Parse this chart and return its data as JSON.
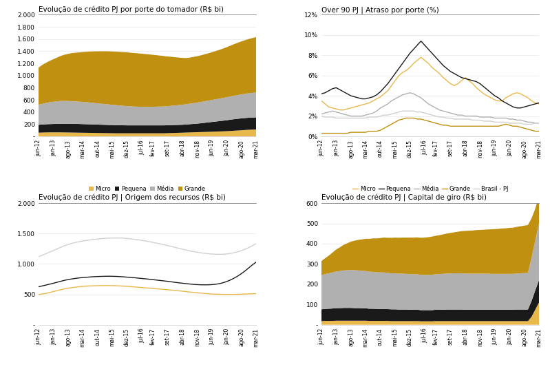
{
  "title1": "Evolução de crédito PJ por porte do tomador (R$ bi)",
  "title2": "Over 90 PJ | Atraso por porte (%)",
  "title3": "Evolução de crédito PJ | Origem dos recursos (R$ bi)",
  "title4": "Evolução de crédito PJ | Capital de giro (R$ bi)",
  "colors": {
    "micro": "#E8B84B",
    "pequena": "#1A1A1A",
    "media": "#B0B0B0",
    "grande": "#C09010",
    "brasil_pj": "#D0D0D0",
    "com_dest": "#E8B84B",
    "sem_dest": "#1A1A1A"
  },
  "xtick_labels": [
    "jun-12",
    "jan-13",
    "ago-13",
    "mar-14",
    "out-14",
    "mai-15",
    "dez-15",
    "jul-16",
    "fev-17",
    "set-17",
    "abr-18",
    "nov-18",
    "jun-19",
    "jan-20",
    "ago-20",
    "mar-21"
  ],
  "c1_micro": [
    60,
    62,
    64,
    65,
    65,
    65,
    65,
    64,
    63,
    62,
    61,
    60,
    59,
    58,
    57,
    56,
    55,
    54,
    53,
    52,
    51,
    50,
    50,
    50,
    50,
    50,
    50,
    50,
    50,
    50,
    50,
    50,
    50,
    50,
    50,
    52,
    54,
    56,
    58,
    60,
    62,
    64,
    66,
    68,
    70,
    72,
    74,
    76,
    78,
    80,
    82,
    85,
    88,
    92,
    96,
    100,
    104,
    108,
    110,
    112
  ],
  "c1_pequena": [
    130,
    132,
    134,
    136,
    138,
    140,
    142,
    143,
    144,
    145,
    144,
    143,
    142,
    141,
    140,
    139,
    138,
    137,
    136,
    135,
    134,
    133,
    132,
    131,
    130,
    130,
    130,
    130,
    130,
    130,
    130,
    130,
    130,
    130,
    130,
    130,
    130,
    130,
    130,
    130,
    132,
    135,
    138,
    141,
    145,
    150,
    155,
    160,
    165,
    170,
    175,
    180,
    185,
    190,
    193,
    195,
    197,
    198,
    199,
    200
  ],
  "c1_media": [
    330,
    340,
    350,
    360,
    365,
    370,
    375,
    375,
    374,
    372,
    370,
    368,
    365,
    362,
    358,
    354,
    350,
    346,
    342,
    338,
    334,
    330,
    326,
    322,
    318,
    314,
    310,
    308,
    306,
    305,
    305,
    306,
    308,
    310,
    312,
    315,
    318,
    322,
    326,
    330,
    334,
    338,
    342,
    346,
    350,
    354,
    358,
    362,
    366,
    370,
    374,
    378,
    382,
    386,
    390,
    394,
    398,
    402,
    406,
    410
  ],
  "c1_grande": [
    610,
    640,
    660,
    680,
    700,
    720,
    740,
    760,
    775,
    790,
    800,
    810,
    820,
    830,
    840,
    848,
    855,
    862,
    868,
    873,
    877,
    880,
    882,
    883,
    883,
    882,
    880,
    877,
    873,
    868,
    862,
    855,
    847,
    838,
    828,
    817,
    806,
    794,
    782,
    770,
    760,
    758,
    760,
    763,
    767,
    772,
    778,
    785,
    793,
    802,
    812,
    823,
    835,
    848,
    860,
    872,
    883,
    893,
    902,
    910
  ],
  "c2_micro": [
    3.5,
    3.2,
    2.9,
    2.8,
    2.7,
    2.6,
    2.6,
    2.7,
    2.8,
    2.9,
    3.0,
    3.1,
    3.2,
    3.3,
    3.5,
    3.7,
    3.9,
    4.2,
    4.5,
    5.0,
    5.5,
    6.0,
    6.3,
    6.5,
    6.8,
    7.2,
    7.5,
    7.8,
    7.5,
    7.2,
    6.8,
    6.5,
    6.2,
    5.8,
    5.5,
    5.2,
    5.0,
    5.2,
    5.5,
    5.8,
    5.5,
    5.2,
    4.8,
    4.5,
    4.2,
    4.0,
    3.8,
    3.6,
    3.5,
    3.5,
    3.8,
    4.0,
    4.2,
    4.3,
    4.2,
    4.0,
    3.8,
    3.5,
    3.3,
    3.2
  ],
  "c2_pequena": [
    4.2,
    4.3,
    4.5,
    4.7,
    4.8,
    4.6,
    4.4,
    4.2,
    4.0,
    3.9,
    3.8,
    3.7,
    3.7,
    3.8,
    3.9,
    4.1,
    4.4,
    4.8,
    5.2,
    5.7,
    6.2,
    6.7,
    7.2,
    7.7,
    8.2,
    8.6,
    9.0,
    9.4,
    9.0,
    8.6,
    8.2,
    7.8,
    7.4,
    7.0,
    6.7,
    6.4,
    6.2,
    6.0,
    5.8,
    5.7,
    5.6,
    5.5,
    5.4,
    5.2,
    4.9,
    4.6,
    4.3,
    4.0,
    3.8,
    3.5,
    3.3,
    3.1,
    2.9,
    2.8,
    2.8,
    2.9,
    3.0,
    3.1,
    3.2,
    3.3
  ],
  "c2_media": [
    2.2,
    2.3,
    2.4,
    2.5,
    2.4,
    2.3,
    2.2,
    2.1,
    2.0,
    2.0,
    2.0,
    2.0,
    2.1,
    2.2,
    2.3,
    2.5,
    2.8,
    3.0,
    3.2,
    3.5,
    3.7,
    3.9,
    4.1,
    4.2,
    4.3,
    4.2,
    4.0,
    3.8,
    3.5,
    3.2,
    3.0,
    2.8,
    2.6,
    2.5,
    2.4,
    2.3,
    2.2,
    2.1,
    2.1,
    2.0,
    2.0,
    2.0,
    2.0,
    1.9,
    1.9,
    1.9,
    1.9,
    1.8,
    1.8,
    1.8,
    1.8,
    1.7,
    1.7,
    1.6,
    1.6,
    1.5,
    1.4,
    1.4,
    1.3,
    1.3
  ],
  "c2_grande": [
    0.3,
    0.3,
    0.3,
    0.3,
    0.3,
    0.3,
    0.3,
    0.3,
    0.4,
    0.4,
    0.4,
    0.4,
    0.4,
    0.5,
    0.5,
    0.5,
    0.6,
    0.8,
    1.0,
    1.2,
    1.4,
    1.6,
    1.7,
    1.8,
    1.8,
    1.8,
    1.7,
    1.7,
    1.6,
    1.5,
    1.4,
    1.3,
    1.2,
    1.1,
    1.1,
    1.0,
    1.0,
    1.0,
    1.0,
    1.0,
    1.0,
    1.0,
    1.0,
    1.0,
    1.0,
    1.0,
    1.0,
    1.0,
    1.0,
    1.1,
    1.2,
    1.1,
    1.0,
    1.0,
    0.9,
    0.8,
    0.7,
    0.6,
    0.5,
    0.5
  ],
  "c2_brasil": [
    2.0,
    1.9,
    1.9,
    1.9,
    1.8,
    1.8,
    1.8,
    1.8,
    1.8,
    1.8,
    1.8,
    1.8,
    1.8,
    1.9,
    1.9,
    1.9,
    2.0,
    2.1,
    2.1,
    2.2,
    2.3,
    2.4,
    2.5,
    2.5,
    2.5,
    2.5,
    2.4,
    2.4,
    2.3,
    2.2,
    2.1,
    2.0,
    1.9,
    1.9,
    1.8,
    1.8,
    1.7,
    1.7,
    1.7,
    1.7,
    1.7,
    1.6,
    1.6,
    1.6,
    1.5,
    1.5,
    1.5,
    1.4,
    1.4,
    1.4,
    1.4,
    1.3,
    1.3,
    1.3,
    1.3,
    1.2,
    1.2,
    1.2,
    1.3,
    1.3
  ],
  "c3_com": [
    495,
    505,
    515,
    530,
    545,
    560,
    575,
    590,
    600,
    610,
    618,
    625,
    630,
    635,
    638,
    640,
    642,
    643,
    644,
    644,
    643,
    641,
    638,
    635,
    631,
    627,
    622,
    617,
    612,
    607,
    602,
    597,
    592,
    587,
    582,
    576,
    570,
    564,
    558,
    552,
    545,
    538,
    532,
    526,
    520,
    515,
    510,
    505,
    502,
    500,
    499,
    498,
    498,
    499,
    500,
    502,
    505,
    508,
    510,
    512
  ],
  "c3_sem": [
    625,
    638,
    652,
    667,
    682,
    698,
    714,
    730,
    742,
    753,
    762,
    770,
    776,
    781,
    786,
    790,
    793,
    795,
    797,
    798,
    797,
    795,
    792,
    788,
    783,
    778,
    773,
    767,
    761,
    755,
    749,
    742,
    735,
    728,
    721,
    714,
    706,
    698,
    690,
    683,
    676,
    670,
    664,
    660,
    657,
    656,
    657,
    660,
    666,
    675,
    690,
    710,
    735,
    765,
    800,
    840,
    885,
    935,
    985,
    1030
  ],
  "c3_brasil": [
    1120,
    1143,
    1168,
    1194,
    1220,
    1247,
    1273,
    1298,
    1320,
    1338,
    1353,
    1366,
    1377,
    1386,
    1395,
    1403,
    1410,
    1416,
    1421,
    1425,
    1427,
    1428,
    1427,
    1424,
    1419,
    1413,
    1406,
    1397,
    1388,
    1378,
    1367,
    1355,
    1343,
    1330,
    1316,
    1302,
    1288,
    1273,
    1258,
    1243,
    1229,
    1216,
    1204,
    1193,
    1183,
    1175,
    1168,
    1163,
    1160,
    1159,
    1160,
    1165,
    1173,
    1185,
    1200,
    1218,
    1242,
    1270,
    1300,
    1335
  ],
  "c4_micro": [
    18,
    19,
    19,
    19,
    20,
    20,
    20,
    20,
    20,
    20,
    20,
    20,
    20,
    19,
    19,
    19,
    19,
    19,
    19,
    18,
    18,
    18,
    18,
    18,
    18,
    18,
    18,
    17,
    17,
    17,
    17,
    18,
    18,
    18,
    18,
    18,
    18,
    18,
    18,
    18,
    18,
    18,
    18,
    18,
    18,
    18,
    18,
    18,
    18,
    18,
    18,
    18,
    18,
    18,
    18,
    18,
    18,
    40,
    75,
    110
  ],
  "c4_pequena": [
    58,
    59,
    60,
    61,
    62,
    62,
    63,
    63,
    63,
    62,
    62,
    61,
    61,
    60,
    60,
    59,
    59,
    59,
    58,
    58,
    58,
    57,
    57,
    57,
    56,
    56,
    56,
    55,
    55,
    55,
    55,
    56,
    56,
    56,
    57,
    57,
    57,
    57,
    57,
    56,
    56,
    56,
    56,
    56,
    56,
    56,
    56,
    56,
    56,
    56,
    56,
    56,
    56,
    57,
    57,
    57,
    57,
    78,
    95,
    110
  ],
  "c4_media": [
    168,
    172,
    175,
    178,
    181,
    183,
    185,
    186,
    187,
    187,
    186,
    185,
    184,
    183,
    182,
    181,
    180,
    180,
    179,
    178,
    178,
    177,
    177,
    176,
    176,
    175,
    175,
    174,
    174,
    174,
    175,
    175,
    176,
    177,
    178,
    178,
    179,
    179,
    179,
    179,
    178,
    178,
    178,
    178,
    178,
    178,
    177,
    177,
    177,
    177,
    177,
    177,
    177,
    178,
    179,
    180,
    181,
    213,
    248,
    280
  ],
  "c4_grande": [
    70,
    78,
    87,
    98,
    108,
    117,
    126,
    133,
    140,
    146,
    151,
    155,
    159,
    162,
    165,
    167,
    170,
    172,
    173,
    175,
    176,
    177,
    178,
    179,
    180,
    181,
    182,
    183,
    184,
    186,
    188,
    190,
    192,
    195,
    197,
    200,
    202,
    205,
    208,
    210,
    212,
    213,
    215,
    216,
    217,
    218,
    220,
    221,
    222,
    224,
    225,
    227,
    228,
    230,
    232,
    234,
    236,
    195,
    155,
    140
  ]
}
